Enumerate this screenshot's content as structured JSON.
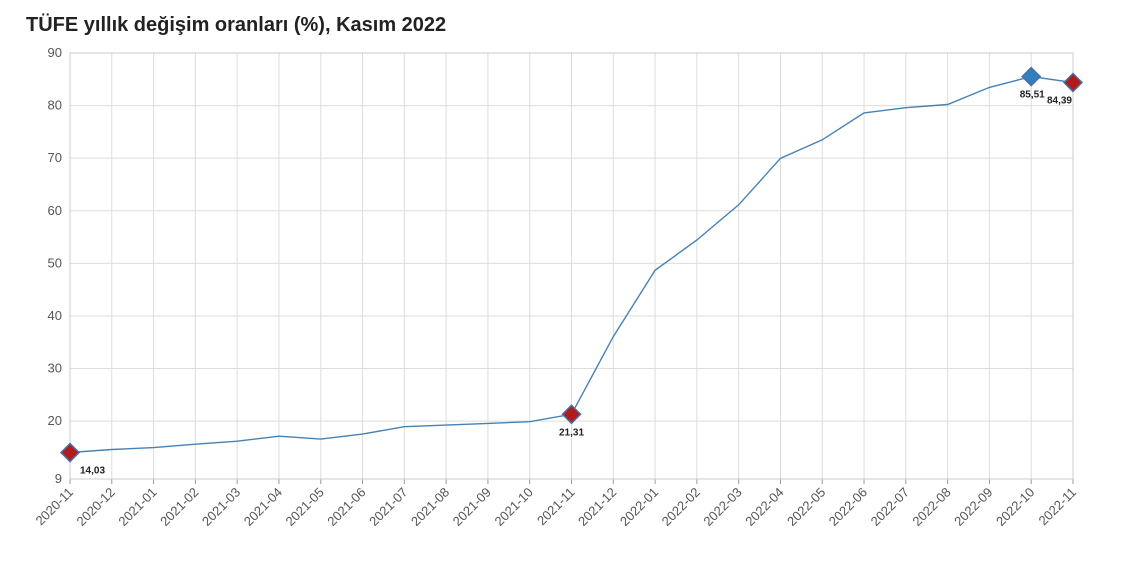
{
  "chart_data": {
    "type": "line",
    "title": "TÜFE yıllık değişim oranları (%), Kasım 2022",
    "xlabel": "",
    "ylabel": "",
    "x": [
      "2020-11",
      "2020-12",
      "2021-01",
      "2021-02",
      "2021-03",
      "2021-04",
      "2021-05",
      "2021-06",
      "2021-07",
      "2021-08",
      "2021-09",
      "2021-10",
      "2021-11",
      "2021-12",
      "2022-01",
      "2022-02",
      "2022-03",
      "2022-04",
      "2022-05",
      "2022-06",
      "2022-07",
      "2022-08",
      "2022-09",
      "2022-10",
      "2022-11"
    ],
    "series": [
      {
        "values": [
          14.03,
          14.6,
          14.97,
          15.61,
          16.19,
          17.14,
          16.59,
          17.53,
          18.95,
          19.25,
          19.58,
          19.89,
          21.31,
          36.08,
          48.69,
          54.44,
          61.14,
          69.97,
          73.5,
          78.62,
          79.6,
          80.21,
          83.45,
          85.51,
          84.39
        ],
        "color": "#4682b4"
      }
    ],
    "yticks": [
      9,
      20,
      30,
      40,
      50,
      60,
      70,
      80,
      90
    ],
    "ylim": [
      9,
      90
    ],
    "grid": true,
    "highlights": [
      {
        "index": 0,
        "label": "14,03",
        "color": "#b01c1c"
      },
      {
        "index": 12,
        "label": "21,31",
        "color": "#b01c1c"
      },
      {
        "index": 23,
        "label": "85,51",
        "color": "#2f7fc1"
      },
      {
        "index": 24,
        "label": "84,39",
        "color": "#b01c1c"
      }
    ]
  }
}
